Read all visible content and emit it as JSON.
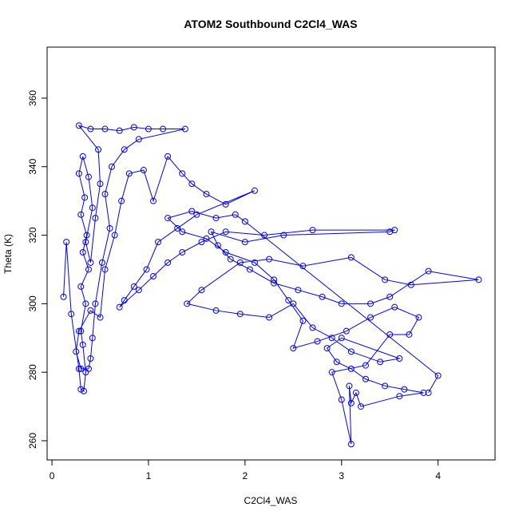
{
  "chart_data": {
    "type": "line",
    "markers": true,
    "title": "ATOM2 Southbound C2Cl4_WAS",
    "x_label": "C2Cl4_WAS",
    "y_label": "Theta (K)",
    "color": "#0000ff",
    "x": [
      0.12,
      0.15,
      0.2,
      0.28,
      0.3,
      0.33,
      0.35,
      0.32,
      0.3,
      0.35,
      0.3,
      0.38,
      0.32,
      0.36,
      0.3,
      0.34,
      0.28,
      0.32,
      0.38,
      0.42,
      0.35,
      0.4,
      0.45,
      0.5,
      0.48,
      0.28,
      0.4,
      0.55,
      0.7,
      0.85,
      1.0,
      1.15,
      1.38,
      0.9,
      0.75,
      0.62,
      0.55,
      0.6,
      0.52,
      0.45,
      0.42,
      0.4,
      0.38,
      0.3,
      0.25,
      0.28,
      0.4,
      0.5,
      0.55,
      0.65,
      0.72,
      0.8,
      0.95,
      1.05,
      1.2,
      1.35,
      1.45,
      1.6,
      1.8,
      2.1,
      1.5,
      1.3,
      1.1,
      0.98,
      0.85,
      0.75,
      0.7,
      0.9,
      1.05,
      1.2,
      1.35,
      1.55,
      1.8,
      2.2,
      2.7,
      3.55,
      3.5,
      2.4,
      2.0,
      1.65,
      1.72,
      1.85,
      2.05,
      2.3,
      2.55,
      2.8,
      3.0,
      3.3,
      3.5,
      3.9,
      4.42,
      3.72,
      3.45,
      3.1,
      2.6,
      2.25,
      1.95,
      1.55,
      1.4,
      1.7,
      1.95,
      2.25,
      2.5,
      2.7,
      2.9,
      3.1,
      3.4,
      3.6,
      3.0,
      2.85,
      2.95,
      3.1,
      3.25,
      3.45,
      3.65,
      3.85,
      3.6,
      3.2,
      3.15,
      3.1,
      3.08,
      3.1,
      3.0,
      2.9,
      3.25,
      3.5,
      3.7,
      3.8,
      3.55,
      3.3,
      3.05,
      2.75,
      2.5,
      2.6,
      2.45,
      2.3,
      2.1,
      1.8,
      1.6,
      1.35,
      1.2,
      1.45,
      1.7,
      1.9,
      2.0,
      4.0,
      3.9
    ],
    "values": [
      302,
      318,
      297,
      281,
      275,
      274.5,
      280,
      288,
      292,
      300,
      305,
      310,
      315,
      320,
      326,
      331,
      338,
      343,
      337,
      328,
      318,
      312,
      325,
      335,
      345,
      352,
      351,
      351,
      350.5,
      351.5,
      351,
      351,
      351,
      348,
      345,
      340,
      332,
      322,
      312,
      300,
      290,
      284,
      281,
      281,
      286,
      292,
      298,
      296,
      310,
      320,
      330,
      338,
      339,
      330,
      343,
      338,
      335,
      332,
      329,
      333,
      326,
      322,
      318,
      310,
      305,
      301,
      299,
      304,
      308,
      312,
      315,
      318,
      321,
      320,
      321.5,
      321.5,
      321,
      320,
      318,
      321,
      317,
      313,
      310,
      306,
      304,
      302,
      300,
      300,
      302,
      309.5,
      307,
      305.5,
      307,
      313.5,
      311,
      313,
      312,
      304,
      300,
      298,
      297,
      296,
      300,
      293,
      290,
      286,
      283,
      284,
      290,
      287,
      283,
      281,
      278,
      276,
      275,
      274,
      273,
      270,
      274,
      271,
      276,
      259,
      272,
      280,
      282,
      291,
      291,
      296,
      299,
      296,
      292,
      289,
      287,
      295,
      301,
      307,
      312,
      315,
      319,
      321,
      325,
      327,
      325,
      326,
      324,
      279,
      274
    ],
    "xlim": [
      -0.05,
      4.59
    ],
    "ylim": [
      254.4,
      374.9
    ],
    "xticks": [
      0,
      1,
      2,
      3,
      4
    ],
    "yticks": [
      260,
      280,
      300,
      320,
      340,
      360
    ]
  }
}
